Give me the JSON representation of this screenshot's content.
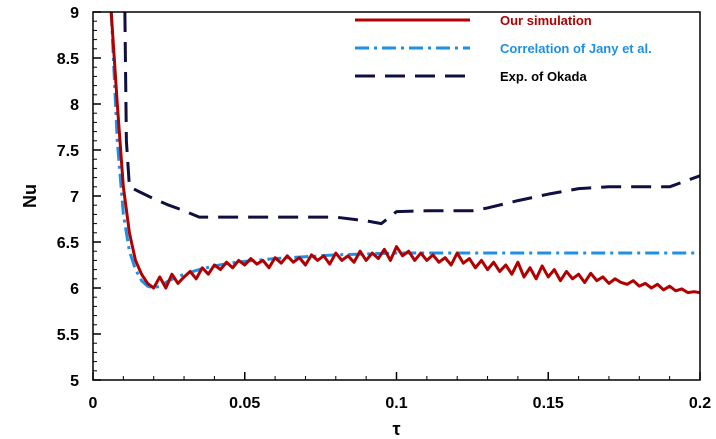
{
  "chart_data": {
    "type": "line",
    "xlabel": "τ",
    "ylabel": "Nu",
    "xlim": [
      0,
      0.2
    ],
    "ylim": [
      5,
      9
    ],
    "x_ticks": [
      "0",
      "0.05",
      "0.1",
      "0.15",
      "0.2"
    ],
    "y_ticks": [
      "5",
      "5.5",
      "6",
      "6.5",
      "7",
      "7.5",
      "8",
      "8.5",
      "9"
    ],
    "legend_position": "top-right",
    "series": [
      {
        "name": "Our simulation",
        "color": "#b00000",
        "style": "solid",
        "x": [
          0.006,
          0.008,
          0.01,
          0.012,
          0.014,
          0.016,
          0.018,
          0.02,
          0.022,
          0.024,
          0.026,
          0.028,
          0.03,
          0.032,
          0.034,
          0.036,
          0.038,
          0.04,
          0.042,
          0.044,
          0.046,
          0.048,
          0.05,
          0.052,
          0.054,
          0.056,
          0.058,
          0.06,
          0.062,
          0.064,
          0.066,
          0.068,
          0.07,
          0.072,
          0.074,
          0.076,
          0.078,
          0.08,
          0.082,
          0.084,
          0.086,
          0.088,
          0.09,
          0.092,
          0.094,
          0.096,
          0.098,
          0.1,
          0.102,
          0.104,
          0.106,
          0.108,
          0.11,
          0.112,
          0.114,
          0.116,
          0.118,
          0.12,
          0.122,
          0.124,
          0.126,
          0.128,
          0.13,
          0.132,
          0.134,
          0.136,
          0.138,
          0.14,
          0.142,
          0.144,
          0.146,
          0.148,
          0.15,
          0.152,
          0.154,
          0.156,
          0.158,
          0.16,
          0.162,
          0.164,
          0.166,
          0.168,
          0.17,
          0.172,
          0.174,
          0.176,
          0.178,
          0.18,
          0.182,
          0.184,
          0.186,
          0.188,
          0.19,
          0.192,
          0.194,
          0.196,
          0.198,
          0.2
        ],
        "y": [
          9.0,
          8.0,
          7.1,
          6.6,
          6.3,
          6.15,
          6.05,
          6.0,
          6.12,
          6.0,
          6.15,
          6.05,
          6.12,
          6.18,
          6.1,
          6.22,
          6.15,
          6.25,
          6.2,
          6.28,
          6.22,
          6.3,
          6.25,
          6.32,
          6.26,
          6.3,
          6.22,
          6.33,
          6.27,
          6.35,
          6.28,
          6.33,
          6.25,
          6.36,
          6.3,
          6.35,
          6.26,
          6.38,
          6.3,
          6.35,
          6.28,
          6.4,
          6.3,
          6.38,
          6.32,
          6.42,
          6.3,
          6.45,
          6.35,
          6.4,
          6.3,
          6.38,
          6.3,
          6.36,
          6.28,
          6.33,
          6.25,
          6.38,
          6.27,
          6.32,
          6.22,
          6.3,
          6.2,
          6.28,
          6.18,
          6.25,
          6.15,
          6.28,
          6.12,
          6.22,
          6.1,
          6.24,
          6.12,
          6.2,
          6.08,
          6.18,
          6.1,
          6.15,
          6.06,
          6.16,
          6.08,
          6.12,
          6.05,
          6.1,
          6.06,
          6.04,
          6.08,
          6.02,
          6.05,
          6.0,
          6.04,
          5.98,
          6.02,
          5.97,
          5.99,
          5.95,
          5.96,
          5.95
        ]
      },
      {
        "name": "Correlation of Jany et al.",
        "color": "#1e90e6",
        "style": "dashdot",
        "x": [
          0.006,
          0.008,
          0.01,
          0.012,
          0.014,
          0.016,
          0.018,
          0.02,
          0.022,
          0.025,
          0.03,
          0.035,
          0.04,
          0.045,
          0.05,
          0.06,
          0.07,
          0.08,
          0.09,
          0.1,
          0.12,
          0.15,
          0.2
        ],
        "y": [
          9.0,
          7.6,
          6.8,
          6.4,
          6.2,
          6.08,
          6.02,
          6.0,
          6.02,
          6.08,
          6.15,
          6.2,
          6.24,
          6.27,
          6.29,
          6.32,
          6.34,
          6.36,
          6.37,
          6.38,
          6.38,
          6.38,
          6.38
        ]
      },
      {
        "name": "Exp. of Okada",
        "color": "#101040",
        "style": "dashed",
        "x": [
          0.0105,
          0.011,
          0.012,
          0.015,
          0.02,
          0.025,
          0.03,
          0.035,
          0.04,
          0.05,
          0.06,
          0.07,
          0.08,
          0.09,
          0.095,
          0.1,
          0.11,
          0.12,
          0.125,
          0.13,
          0.14,
          0.15,
          0.16,
          0.17,
          0.18,
          0.19,
          0.2
        ],
        "y": [
          9.0,
          7.6,
          7.1,
          7.05,
          6.97,
          6.9,
          6.84,
          6.77,
          6.77,
          6.77,
          6.77,
          6.77,
          6.77,
          6.73,
          6.7,
          6.83,
          6.84,
          6.84,
          6.84,
          6.87,
          6.95,
          7.02,
          7.08,
          7.1,
          7.1,
          7.1,
          7.22
        ]
      }
    ]
  }
}
